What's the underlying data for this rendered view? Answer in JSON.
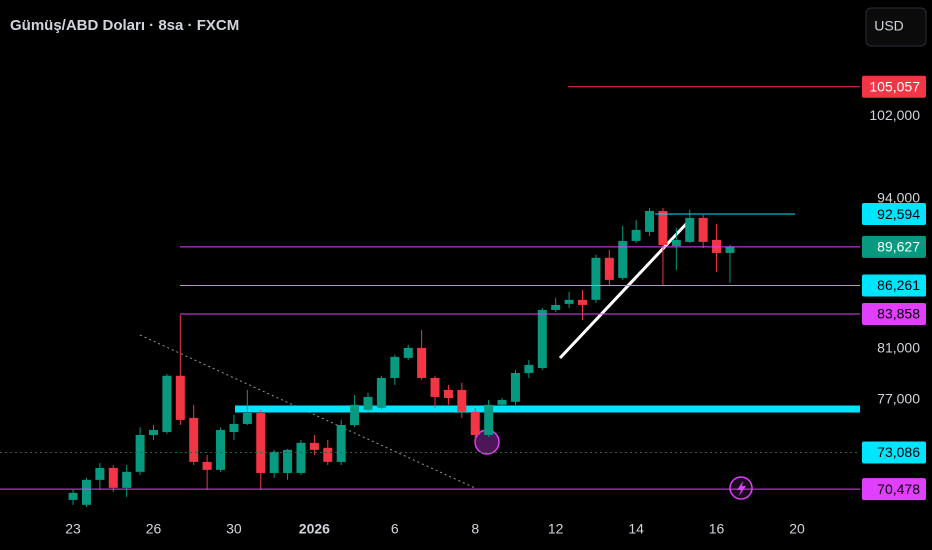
{
  "chart_data": {
    "type": "candlestick",
    "title": "Gümüş/ABD Doları · 8sa · FXCM",
    "currency": "USD",
    "log_scale": true,
    "up_color": "#089981",
    "down_color": "#f23645",
    "open": [
      69730,
      69390,
      71130,
      71980,
      70570,
      71700,
      74370,
      74590,
      78870,
      75640,
      72410,
      71840,
      74590,
      75190,
      76010,
      71620,
      71620,
      71620,
      73790,
      73430,
      72410,
      75110,
      76250,
      76400,
      78700,
      80280,
      81080,
      78700,
      77770,
      77770,
      76100,
      74370,
      76630,
      76860,
      79090,
      79480,
      84190,
      84700,
      85040,
      85040,
      88660,
      86910,
      90160,
      90970,
      92880,
      89710,
      90070,
      92240,
      90250,
      89090
    ],
    "high": [
      70430,
      71270,
      72330,
      72190,
      72190,
      74930,
      75110,
      79010,
      83770,
      76630,
      72910,
      74930,
      75880,
      77770,
      76250,
      73280,
      73350,
      74010,
      74370,
      74010,
      75490,
      77380,
      77540,
      78870,
      80520,
      81320,
      82540,
      78870,
      78160,
      78320,
      76400,
      77000,
      77150,
      79330,
      80120,
      84360,
      85210,
      85720,
      85890,
      88920,
      89360,
      91520,
      92060,
      93160,
      93160,
      91330,
      92980,
      92520,
      91700,
      89800
    ],
    "low": [
      69390,
      69250,
      70430,
      70290,
      69940,
      71480,
      74010,
      74450,
      75110,
      72190,
      70430,
      71700,
      74010,
      75110,
      70430,
      71270,
      71130,
      71480,
      72910,
      72190,
      72190,
      74930,
      76010,
      76250,
      78160,
      80120,
      78550,
      76400,
      76630,
      75640,
      73640,
      74230,
      76550,
      76630,
      78700,
      79330,
      84020,
      84360,
      83360,
      84780,
      86310,
      86740,
      89980,
      90610,
      86310,
      87600,
      89980,
      89530,
      87430,
      86480
    ],
    "close": [
      70220,
      71130,
      71980,
      70570,
      71700,
      74370,
      74740,
      78870,
      75490,
      72410,
      71840,
      74740,
      75190,
      76010,
      71620,
      73140,
      73280,
      73790,
      73280,
      72410,
      75110,
      76630,
      77230,
      78700,
      80360,
      81080,
      78700,
      77230,
      77150,
      76100,
      74370,
      76630,
      77000,
      79090,
      79720,
      84190,
      84610,
      85040,
      84610,
      88660,
      86740,
      90160,
      91150,
      92880,
      89800,
      90250,
      92240,
      90070,
      89090,
      89627
    ],
    "xlim": [
      -5.45,
      58.7
    ],
    "xticks": [
      {
        "value": 0,
        "label": "23"
      },
      {
        "value": 6,
        "label": "26"
      },
      {
        "value": 12,
        "label": "30"
      },
      {
        "value": 18,
        "label": "2026"
      },
      {
        "value": 24,
        "label": "6"
      },
      {
        "value": 30,
        "label": "8"
      },
      {
        "value": 36,
        "label": "12"
      },
      {
        "value": 42,
        "label": "14"
      },
      {
        "value": 48,
        "label": "16"
      },
      {
        "value": 54,
        "label": "20"
      }
    ],
    "ylim": [
      68900,
      114500
    ],
    "yticks": [
      {
        "value": 77000,
        "label": "77,000"
      },
      {
        "value": 81000,
        "label": "81,000"
      },
      {
        "value": 94000,
        "label": "94,000"
      },
      {
        "value": 102000,
        "label": "102,000"
      }
    ],
    "price_labels": [
      {
        "value": 105057,
        "label": "105,057",
        "color": "#f23645",
        "line_color": "#f23645"
      },
      {
        "value": 92594,
        "label": "92,594",
        "color": "#00e5ff",
        "line_color": "#00e5ff"
      },
      {
        "value": 89627,
        "label": "89,627",
        "color": "#089981",
        "line_color": "#e040fb"
      },
      {
        "value": 86261,
        "label": "86,261",
        "color": "#00e5ff",
        "line_color": "#00e5ff"
      },
      {
        "value": 83858,
        "label": "83,858",
        "color": "#e040fb",
        "line_color": "#e040fb"
      },
      {
        "value": 73086,
        "label": "73,086",
        "color": "#00e5ff",
        "line_color": "#2e5e4e"
      },
      {
        "value": 70478,
        "label": "70,478",
        "color": "#e040fb",
        "line_color": "#e040fb"
      }
    ]
  }
}
